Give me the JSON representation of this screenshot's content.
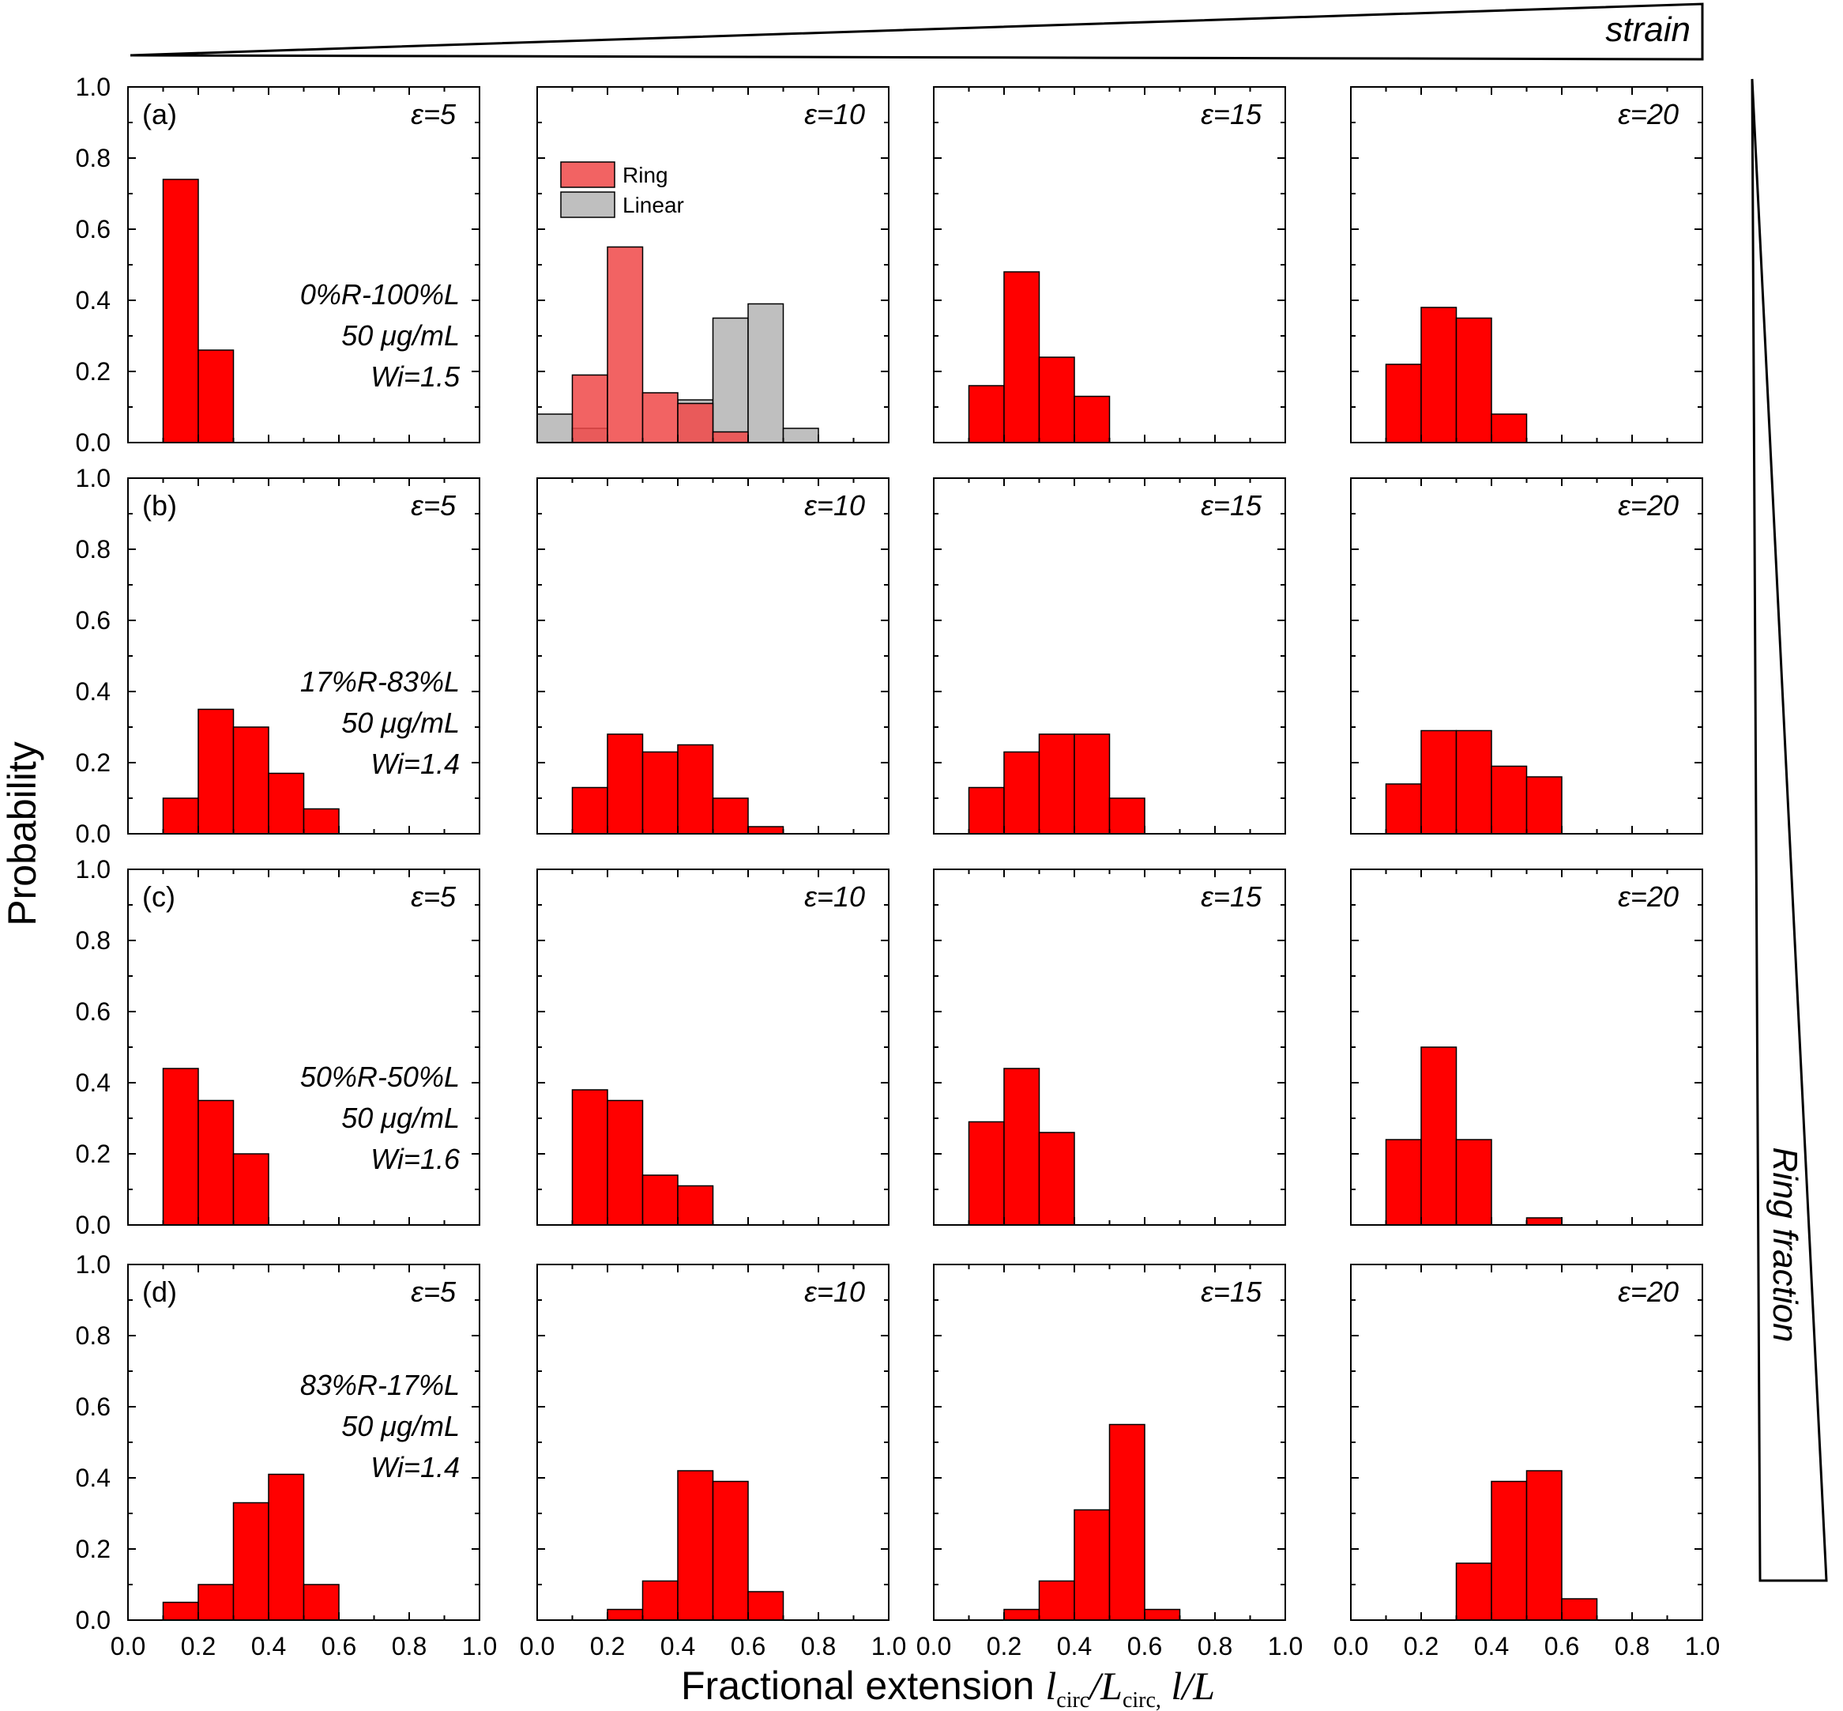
{
  "figure": {
    "ylabel": "Probability",
    "xlabel_prefix": "Fractional extension ",
    "xlabel_math": "l",
    "xlabel_sub1": "circ",
    "xlabel_slash": "/L",
    "xlabel_sub2": "circ,",
    "xlabel_suffix": " l/L",
    "strain_label": "strain",
    "ring_fraction_label": "Ring fraction",
    "bar_color": "#ff0000",
    "ring_color": "#f04848",
    "linear_color": "#b8b8b8",
    "legend": {
      "ring": "Ring",
      "linear": "Linear"
    }
  },
  "chart_data": {
    "type": "bar",
    "xlim": [
      0.0,
      1.0
    ],
    "ylim": [
      0.0,
      1.0
    ],
    "bin_width": 0.1,
    "xticks": [
      "0.0",
      "0.2",
      "0.4",
      "0.6",
      "0.8",
      "1.0"
    ],
    "yticks": [
      "0.0",
      "0.2",
      "0.4",
      "0.6",
      "0.8",
      "1.0"
    ],
    "rows": [
      {
        "letter": "(a)",
        "composition": "0%R-100%L",
        "concentration": "50 μg/mL",
        "wi": "Wi=1.5",
        "panels": [
          {
            "strain": "ε=5",
            "bars": [
              {
                "x": 0.15,
                "y": 0.74
              },
              {
                "x": 0.25,
                "y": 0.26
              }
            ]
          },
          {
            "strain": "ε=10",
            "legend": true,
            "linear": [
              {
                "x": 0.05,
                "y": 0.08
              },
              {
                "x": 0.15,
                "y": 0.04
              },
              {
                "x": 0.45,
                "y": 0.12
              },
              {
                "x": 0.55,
                "y": 0.35
              },
              {
                "x": 0.65,
                "y": 0.39
              },
              {
                "x": 0.75,
                "y": 0.04
              }
            ],
            "ring": [
              {
                "x": 0.15,
                "y": 0.19
              },
              {
                "x": 0.25,
                "y": 0.55
              },
              {
                "x": 0.35,
                "y": 0.14
              },
              {
                "x": 0.45,
                "y": 0.11
              },
              {
                "x": 0.55,
                "y": 0.03
              }
            ]
          },
          {
            "strain": "ε=15",
            "bars": [
              {
                "x": 0.15,
                "y": 0.16
              },
              {
                "x": 0.25,
                "y": 0.48
              },
              {
                "x": 0.35,
                "y": 0.24
              },
              {
                "x": 0.45,
                "y": 0.13
              }
            ]
          },
          {
            "strain": "ε=20",
            "bars": [
              {
                "x": 0.15,
                "y": 0.22
              },
              {
                "x": 0.25,
                "y": 0.38
              },
              {
                "x": 0.35,
                "y": 0.35
              },
              {
                "x": 0.45,
                "y": 0.08
              }
            ]
          }
        ]
      },
      {
        "letter": "(b)",
        "composition": "17%R-83%L",
        "concentration": "50 μg/mL",
        "wi": "Wi=1.4",
        "panels": [
          {
            "strain": "ε=5",
            "bars": [
              {
                "x": 0.15,
                "y": 0.1
              },
              {
                "x": 0.25,
                "y": 0.35
              },
              {
                "x": 0.35,
                "y": 0.3
              },
              {
                "x": 0.45,
                "y": 0.17
              },
              {
                "x": 0.55,
                "y": 0.07
              }
            ]
          },
          {
            "strain": "ε=10",
            "bars": [
              {
                "x": 0.15,
                "y": 0.13
              },
              {
                "x": 0.25,
                "y": 0.28
              },
              {
                "x": 0.35,
                "y": 0.23
              },
              {
                "x": 0.45,
                "y": 0.25
              },
              {
                "x": 0.55,
                "y": 0.1
              },
              {
                "x": 0.65,
                "y": 0.02
              }
            ]
          },
          {
            "strain": "ε=15",
            "bars": [
              {
                "x": 0.15,
                "y": 0.13
              },
              {
                "x": 0.25,
                "y": 0.23
              },
              {
                "x": 0.35,
                "y": 0.28
              },
              {
                "x": 0.45,
                "y": 0.28
              },
              {
                "x": 0.55,
                "y": 0.1
              }
            ]
          },
          {
            "strain": "ε=20",
            "bars": [
              {
                "x": 0.15,
                "y": 0.14
              },
              {
                "x": 0.25,
                "y": 0.29
              },
              {
                "x": 0.35,
                "y": 0.29
              },
              {
                "x": 0.45,
                "y": 0.19
              },
              {
                "x": 0.55,
                "y": 0.16
              }
            ]
          }
        ]
      },
      {
        "letter": "(c)",
        "composition": "50%R-50%L",
        "concentration": "50 μg/mL",
        "wi": "Wi=1.6",
        "panels": [
          {
            "strain": "ε=5",
            "bars": [
              {
                "x": 0.15,
                "y": 0.44
              },
              {
                "x": 0.25,
                "y": 0.35
              },
              {
                "x": 0.35,
                "y": 0.2
              }
            ]
          },
          {
            "strain": "ε=10",
            "bars": [
              {
                "x": 0.15,
                "y": 0.38
              },
              {
                "x": 0.25,
                "y": 0.35
              },
              {
                "x": 0.35,
                "y": 0.14
              },
              {
                "x": 0.45,
                "y": 0.11
              }
            ]
          },
          {
            "strain": "ε=15",
            "bars": [
              {
                "x": 0.15,
                "y": 0.29
              },
              {
                "x": 0.25,
                "y": 0.44
              },
              {
                "x": 0.35,
                "y": 0.26
              }
            ]
          },
          {
            "strain": "ε=20",
            "bars": [
              {
                "x": 0.15,
                "y": 0.24
              },
              {
                "x": 0.25,
                "y": 0.5
              },
              {
                "x": 0.35,
                "y": 0.24
              },
              {
                "x": 0.55,
                "y": 0.02
              }
            ]
          }
        ]
      },
      {
        "letter": "(d)",
        "composition": "83%R-17%L",
        "concentration": "50 μg/mL",
        "wi": "Wi=1.4",
        "panels": [
          {
            "strain": "ε=5",
            "bars": [
              {
                "x": 0.15,
                "y": 0.05
              },
              {
                "x": 0.25,
                "y": 0.1
              },
              {
                "x": 0.35,
                "y": 0.33
              },
              {
                "x": 0.45,
                "y": 0.41
              },
              {
                "x": 0.55,
                "y": 0.1
              }
            ]
          },
          {
            "strain": "ε=10",
            "bars": [
              {
                "x": 0.25,
                "y": 0.03
              },
              {
                "x": 0.35,
                "y": 0.11
              },
              {
                "x": 0.45,
                "y": 0.42
              },
              {
                "x": 0.55,
                "y": 0.39
              },
              {
                "x": 0.65,
                "y": 0.08
              }
            ]
          },
          {
            "strain": "ε=15",
            "bars": [
              {
                "x": 0.25,
                "y": 0.03
              },
              {
                "x": 0.35,
                "y": 0.11
              },
              {
                "x": 0.45,
                "y": 0.31
              },
              {
                "x": 0.55,
                "y": 0.55
              },
              {
                "x": 0.65,
                "y": 0.03
              }
            ]
          },
          {
            "strain": "ε=20",
            "bars": [
              {
                "x": 0.35,
                "y": 0.16
              },
              {
                "x": 0.45,
                "y": 0.39
              },
              {
                "x": 0.55,
                "y": 0.42
              },
              {
                "x": 0.65,
                "y": 0.06
              }
            ]
          }
        ]
      }
    ]
  }
}
